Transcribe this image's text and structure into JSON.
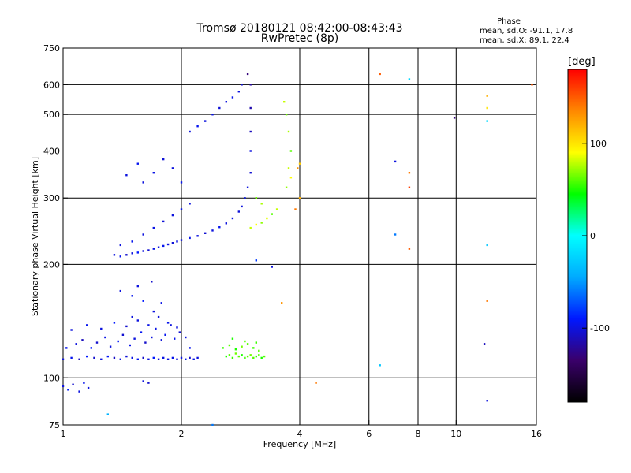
{
  "header": {
    "title": "Tromsø 20180121 08:42:00-08:43:43",
    "subtitle": "RwPretec (8p)"
  },
  "phase_box": {
    "heading": "Phase",
    "line_o": "mean, sd,O: -91.1, 17.8",
    "line_x": "mean, sd,X:  89.1, 22.4"
  },
  "colorbar": {
    "unit": "[deg]",
    "tick_labels": [
      "100",
      "0",
      "-100"
    ],
    "tick_values": [
      100,
      0,
      -100
    ],
    "range": [
      -180,
      180
    ],
    "colors": [
      "#000000",
      "#3a006a",
      "#0018ff",
      "#00aaff",
      "#00ffff",
      "#00ff00",
      "#ffff00",
      "#ff8800",
      "#ff0000"
    ]
  },
  "chart_data": {
    "type": "scatter",
    "title": "Tromsø 20180121 08:42:00-08:43:43",
    "subtitle": "RwPretec (8p)",
    "xlabel": "Frequency [MHz]",
    "ylabel": "Stationary phase Virtual Height [km]",
    "x_scale": "log",
    "y_scale": "log",
    "xlim": [
      1,
      16
    ],
    "ylim": [
      75,
      750
    ],
    "x_ticks": [
      1,
      2,
      4,
      6,
      8,
      10,
      16
    ],
    "x_tick_labels": [
      "1",
      "2",
      "4",
      "6",
      "8",
      "10",
      "16"
    ],
    "y_ticks": [
      75,
      100,
      200,
      300,
      400,
      500,
      600,
      750
    ],
    "y_tick_labels": [
      "75",
      "100",
      "200",
      "300",
      "400",
      "500",
      "600",
      "750"
    ],
    "x_grid": [
      2,
      4,
      6,
      8,
      10
    ],
    "y_grid": [
      100,
      200,
      300,
      400,
      500,
      600
    ],
    "color_by": "phase [deg]",
    "series": [
      {
        "points": [
          [
            1.0,
            112,
            -100
          ],
          [
            1.05,
            113,
            -95
          ],
          [
            1.1,
            112,
            -110
          ],
          [
            1.15,
            114,
            -90
          ],
          [
            1.2,
            113,
            -105
          ],
          [
            1.25,
            112,
            -100
          ],
          [
            1.3,
            114,
            -92
          ],
          [
            1.35,
            113,
            -108
          ],
          [
            1.4,
            112,
            -96
          ],
          [
            1.45,
            114,
            -102
          ],
          [
            1.5,
            113,
            -98
          ],
          [
            1.55,
            112,
            -94
          ],
          [
            1.6,
            113,
            -106
          ],
          [
            1.65,
            112,
            -100
          ],
          [
            1.7,
            113,
            -90
          ],
          [
            1.75,
            112,
            -104
          ],
          [
            1.8,
            113,
            -98
          ],
          [
            1.85,
            112,
            -100
          ],
          [
            1.9,
            113,
            -96
          ],
          [
            1.95,
            112,
            -102
          ],
          [
            2.0,
            113,
            -100
          ],
          [
            2.05,
            112,
            -95
          ],
          [
            2.1,
            113,
            -105
          ],
          [
            2.15,
            112,
            -98
          ],
          [
            2.2,
            113,
            -100
          ],
          [
            1.02,
            120,
            -95
          ],
          [
            1.08,
            123,
            -100
          ],
          [
            1.12,
            126,
            -110
          ],
          [
            1.18,
            120,
            -90
          ],
          [
            1.22,
            124,
            -105
          ],
          [
            1.28,
            128,
            -98
          ],
          [
            1.32,
            121,
            -100
          ],
          [
            1.38,
            125,
            -92
          ],
          [
            1.42,
            130,
            -104
          ],
          [
            1.48,
            122,
            -96
          ],
          [
            1.52,
            127,
            -100
          ],
          [
            1.58,
            132,
            -94
          ],
          [
            1.62,
            124,
            -106
          ],
          [
            1.68,
            128,
            -100
          ],
          [
            1.72,
            135,
            -98
          ],
          [
            1.78,
            126,
            -102
          ],
          [
            1.82,
            130,
            -95
          ],
          [
            1.88,
            138,
            -100
          ],
          [
            1.92,
            127,
            -96
          ],
          [
            1.98,
            132,
            -104
          ],
          [
            1.05,
            134,
            -100
          ],
          [
            1.15,
            138,
            -95
          ],
          [
            1.25,
            135,
            -100
          ],
          [
            1.35,
            140,
            -90
          ],
          [
            1.45,
            137,
            -105
          ],
          [
            1.55,
            142,
            -100
          ],
          [
            1.65,
            138,
            -98
          ],
          [
            1.75,
            145,
            -102
          ],
          [
            1.85,
            140,
            -96
          ],
          [
            1.95,
            136,
            -100
          ],
          [
            2.05,
            128,
            -100
          ],
          [
            2.1,
            120,
            -95
          ],
          [
            1.0,
            95,
            -100
          ],
          [
            1.03,
            93,
            -90
          ],
          [
            1.06,
            96,
            -105
          ],
          [
            1.1,
            92,
            -100
          ],
          [
            1.13,
            97,
            -95
          ],
          [
            1.16,
            94,
            -100
          ],
          [
            1.6,
            98,
            -100
          ],
          [
            1.65,
            97,
            -105
          ],
          [
            1.4,
            170,
            -100
          ],
          [
            1.5,
            165,
            -95
          ],
          [
            1.55,
            175,
            -100
          ],
          [
            1.6,
            160,
            -90
          ],
          [
            1.68,
            180,
            -105
          ],
          [
            1.7,
            150,
            -100
          ],
          [
            1.78,
            158,
            -98
          ],
          [
            1.5,
            145,
            -100
          ],
          [
            2.6,
            114,
            50
          ],
          [
            2.65,
            115,
            60
          ],
          [
            2.7,
            113,
            55
          ],
          [
            2.75,
            116,
            65
          ],
          [
            2.8,
            114,
            60
          ],
          [
            2.85,
            115,
            50
          ],
          [
            2.9,
            113,
            55
          ],
          [
            2.95,
            114,
            60
          ],
          [
            3.0,
            115,
            65
          ],
          [
            3.05,
            113,
            60
          ],
          [
            3.1,
            114,
            55
          ],
          [
            3.15,
            115,
            60
          ],
          [
            3.2,
            113,
            50
          ],
          [
            3.25,
            114,
            60
          ],
          [
            2.55,
            120,
            55
          ],
          [
            2.65,
            122,
            60
          ],
          [
            2.75,
            119,
            50
          ],
          [
            2.85,
            121,
            65
          ],
          [
            2.95,
            123,
            60
          ],
          [
            3.05,
            120,
            55
          ],
          [
            3.15,
            118,
            60
          ],
          [
            2.7,
            127,
            50
          ],
          [
            2.9,
            125,
            60
          ],
          [
            3.1,
            124,
            55
          ],
          [
            1.35,
            212,
            -100
          ],
          [
            1.4,
            210,
            -95
          ],
          [
            1.45,
            212,
            -105
          ],
          [
            1.5,
            214,
            -100
          ],
          [
            1.55,
            215,
            -90
          ],
          [
            1.6,
            217,
            -100
          ],
          [
            1.65,
            218,
            -104
          ],
          [
            1.7,
            220,
            -98
          ],
          [
            1.75,
            222,
            -100
          ],
          [
            1.8,
            224,
            -95
          ],
          [
            1.85,
            226,
            -100
          ],
          [
            1.9,
            228,
            -102
          ],
          [
            1.95,
            230,
            -98
          ],
          [
            2.0,
            232,
            -100
          ],
          [
            2.1,
            235,
            -96
          ],
          [
            2.2,
            238,
            -100
          ],
          [
            2.3,
            242,
            -104
          ],
          [
            2.4,
            246,
            -100
          ],
          [
            2.5,
            251,
            -95
          ],
          [
            2.6,
            257,
            -100
          ],
          [
            2.7,
            265,
            -98
          ],
          [
            2.8,
            276,
            -102
          ],
          [
            2.85,
            285,
            -100
          ],
          [
            2.9,
            300,
            -96
          ],
          [
            2.95,
            320,
            -100
          ],
          [
            3.0,
            350,
            -104
          ],
          [
            3.0,
            400,
            -100
          ],
          [
            3.0,
            450,
            -110
          ],
          [
            3.0,
            520,
            -115
          ],
          [
            3.0,
            600,
            -120
          ],
          [
            2.95,
            640,
            -130
          ],
          [
            1.4,
            225,
            -100
          ],
          [
            1.5,
            230,
            -95
          ],
          [
            1.6,
            240,
            -100
          ],
          [
            1.7,
            250,
            -98
          ],
          [
            1.8,
            260,
            -102
          ],
          [
            1.9,
            270,
            -100
          ],
          [
            2.0,
            280,
            -96
          ],
          [
            2.1,
            290,
            -100
          ],
          [
            1.45,
            345,
            -100
          ],
          [
            1.55,
            370,
            -95
          ],
          [
            1.6,
            330,
            -100
          ],
          [
            1.7,
            350,
            -98
          ],
          [
            1.8,
            380,
            -102
          ],
          [
            1.9,
            360,
            -100
          ],
          [
            2.0,
            330,
            -96
          ],
          [
            2.1,
            450,
            -100
          ],
          [
            2.2,
            465,
            -95
          ],
          [
            2.3,
            480,
            -100
          ],
          [
            2.4,
            500,
            -98
          ],
          [
            2.5,
            520,
            -102
          ],
          [
            2.6,
            540,
            -100
          ],
          [
            2.7,
            555,
            -96
          ],
          [
            2.8,
            575,
            -100
          ],
          [
            2.85,
            600,
            -104
          ],
          [
            3.0,
            250,
            80
          ],
          [
            3.1,
            255,
            90
          ],
          [
            3.2,
            258,
            70
          ],
          [
            3.3,
            265,
            85
          ],
          [
            3.4,
            272,
            60
          ],
          [
            3.5,
            280,
            80
          ],
          [
            3.2,
            290,
            75
          ],
          [
            3.1,
            300,
            65
          ],
          [
            3.7,
            320,
            70
          ],
          [
            3.75,
            360,
            80
          ],
          [
            3.8,
            400,
            60
          ],
          [
            3.75,
            450,
            75
          ],
          [
            3.7,
            500,
            65
          ],
          [
            3.65,
            540,
            80
          ],
          [
            3.8,
            340,
            90
          ],
          [
            3.95,
            360,
            130
          ],
          [
            4.0,
            300,
            120
          ],
          [
            3.9,
            280,
            140
          ],
          [
            4.0,
            370,
            110
          ],
          [
            6.4,
            640,
            150
          ],
          [
            7.6,
            620,
            -20
          ],
          [
            9.9,
            490,
            -130
          ],
          [
            7.0,
            375,
            -100
          ],
          [
            7.6,
            350,
            140
          ],
          [
            7.6,
            320,
            160
          ],
          [
            7.6,
            220,
            150
          ],
          [
            7.0,
            240,
            -60
          ],
          [
            12.0,
            560,
            120
          ],
          [
            12.0,
            520,
            100
          ],
          [
            12.0,
            480,
            -20
          ],
          [
            15.6,
            600,
            150
          ],
          [
            12.0,
            225,
            -30
          ],
          [
            12.0,
            160,
            140
          ],
          [
            11.8,
            123,
            -110
          ],
          [
            12.0,
            87,
            -100
          ],
          [
            6.4,
            108,
            -30
          ],
          [
            4.4,
            97,
            140
          ],
          [
            3.4,
            197,
            -100
          ],
          [
            3.6,
            158,
            130
          ],
          [
            3.1,
            205,
            -80
          ],
          [
            2.4,
            75,
            -60
          ],
          [
            1.3,
            80,
            -40
          ]
        ]
      }
    ]
  }
}
